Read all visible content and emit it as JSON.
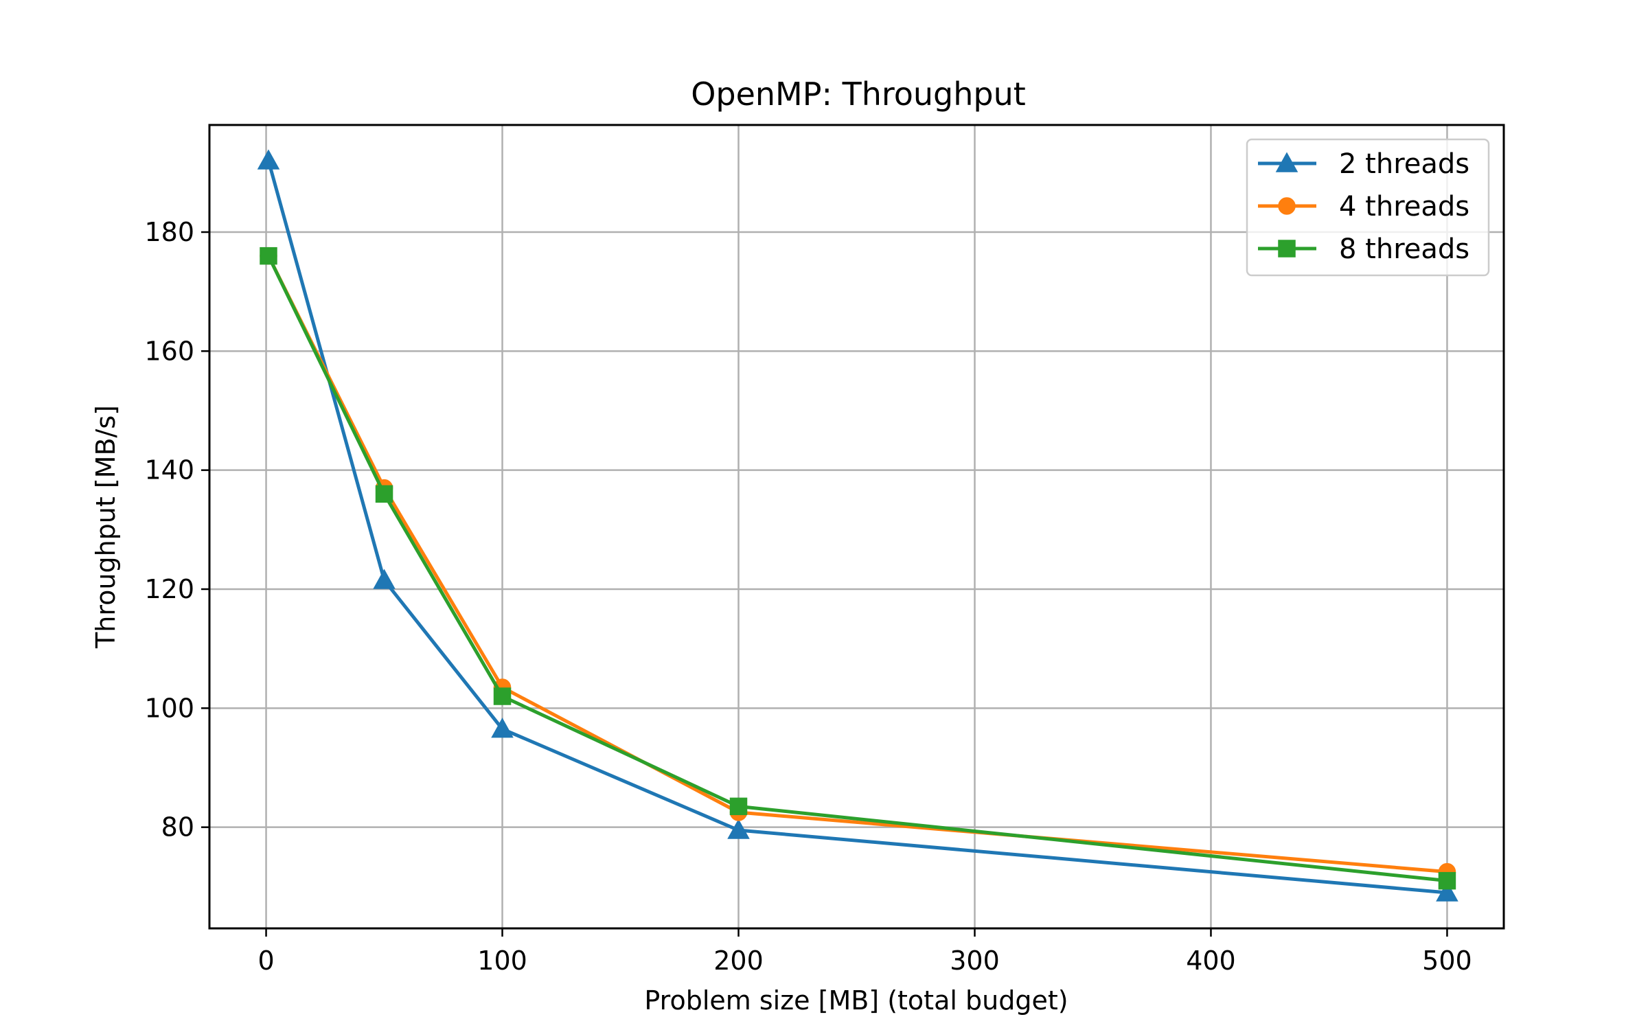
{
  "chart_data": {
    "type": "line",
    "title": "OpenMP: Throughput",
    "xlabel": "Problem size [MB] (total budget)",
    "ylabel": "Throughput [MB/s]",
    "xlim": [
      -24,
      524
    ],
    "ylim": [
      63,
      198
    ],
    "xticks": [
      0,
      100,
      200,
      300,
      400,
      500
    ],
    "yticks": [
      80,
      100,
      120,
      140,
      160,
      180
    ],
    "grid": true,
    "legend_position": "top-right",
    "x": [
      1,
      50,
      100,
      200,
      500
    ],
    "series": [
      {
        "name": "2 threads",
        "values": [
          192,
          121.5,
          96.5,
          79.5,
          69
        ],
        "color": "#1f77b4",
        "marker": "triangle"
      },
      {
        "name": "4 threads",
        "values": [
          176,
          137,
          103.5,
          82.5,
          72.5
        ],
        "color": "#ff7f0e",
        "marker": "circle"
      },
      {
        "name": "8 threads",
        "values": [
          176,
          136,
          102,
          83.5,
          71
        ],
        "color": "#2ca02c",
        "marker": "square"
      }
    ]
  }
}
